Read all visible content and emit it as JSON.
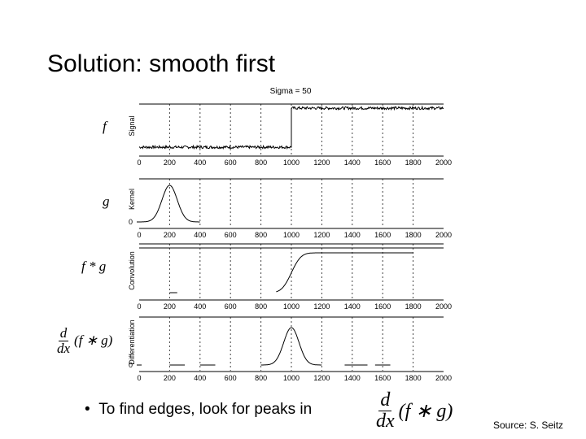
{
  "slide": {
    "title": "Solution: smooth first",
    "bullet_text": "To find edges, look for peaks in",
    "source": "Source: S. Seitz",
    "labels": {
      "f": "f",
      "g": "g",
      "fg": "f * g",
      "d": "d",
      "dx": "dx",
      "fg_paren": "(f ∗ g)"
    }
  },
  "chart_data": [
    {
      "type": "line",
      "title": "Sigma = 50",
      "ylabel": "Signal",
      "xlim": [
        0,
        2000
      ],
      "xticks": [
        0,
        200,
        400,
        600,
        800,
        1000,
        1200,
        1400,
        1600,
        1800,
        2000
      ],
      "series": [
        {
          "x": [
            0,
            990,
            1010,
            2000
          ],
          "y": [
            0,
            0,
            1,
            1
          ]
        }
      ]
    },
    {
      "type": "line",
      "ylabel": "Kernel",
      "xlim": [
        0,
        2000
      ],
      "xticks": [
        0,
        200,
        400,
        600,
        800,
        1000,
        1200,
        1400,
        1600,
        1800,
        2000
      ],
      "ytick_labels": [
        "0"
      ],
      "gaussian": {
        "center": 200,
        "sigma": 50
      }
    },
    {
      "type": "line",
      "ylabel": "Convolution",
      "xlim": [
        0,
        2000
      ],
      "xticks": [
        0,
        200,
        400,
        600,
        800,
        1000,
        1200,
        1400,
        1600,
        1800,
        2000
      ],
      "erf_step": {
        "center": 1000,
        "sigma": 50,
        "start": 900,
        "end": 1800
      }
    },
    {
      "type": "line",
      "ylabel": "Differentiation",
      "xlim": [
        0,
        2000
      ],
      "xticks": [
        0,
        200,
        400,
        600,
        800,
        1000,
        1200,
        1400,
        1600,
        1800,
        2000
      ],
      "ytick_labels": [
        "0"
      ],
      "gaussian": {
        "center": 1000,
        "sigma": 50
      }
    }
  ]
}
